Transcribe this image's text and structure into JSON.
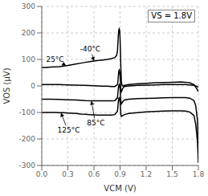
{
  "chart_data": {
    "type": "line",
    "x_label": "VCM (V)",
    "y_label": "VOS (μV)",
    "xlim": [
      0.0,
      1.8
    ],
    "ylim": [
      -300,
      300
    ],
    "xticks": [
      {
        "value": 0,
        "label": "0.0"
      },
      0.3,
      0.6,
      0.9,
      1.2,
      1.5,
      1.8
    ],
    "yticks": [
      -300,
      -200,
      -100,
      0,
      100,
      200,
      300
    ],
    "grid": true,
    "series": [
      {
        "color": "#000000",
        "x": [
          0.0,
          0.05,
          0.1,
          0.15,
          0.2,
          0.25,
          0.3,
          0.35,
          0.4,
          0.45,
          0.5,
          0.55,
          0.6,
          0.65,
          0.7,
          0.75,
          0.8,
          0.84,
          0.86,
          0.87,
          0.875,
          0.88,
          0.885,
          0.89,
          0.895,
          0.9,
          0.905,
          0.91,
          0.915,
          0.92,
          0.93,
          0.95,
          1.0,
          1.1,
          1.2,
          1.3,
          1.4,
          1.5,
          1.6,
          1.65,
          1.7,
          1.75,
          1.77,
          1.79,
          1.8
        ],
        "values": [
          70,
          70,
          71,
          72,
          73,
          75,
          77,
          80,
          83,
          86,
          89,
          92,
          94,
          96,
          98,
          100,
          103,
          107,
          115,
          130,
          160,
          190,
          210,
          215,
          210,
          180,
          120,
          60,
          20,
          5,
          0,
          2,
          5,
          8,
          10,
          12,
          13,
          14,
          15,
          14,
          12,
          5,
          -5,
          -15,
          -22
        ]
      },
      {
        "color": "#000000",
        "x": [
          0.0,
          0.1,
          0.2,
          0.3,
          0.4,
          0.5,
          0.6,
          0.65,
          0.7,
          0.75,
          0.8,
          0.84,
          0.87,
          0.875,
          0.88,
          0.885,
          0.89,
          0.895,
          0.9,
          0.905,
          0.91,
          0.915,
          0.92,
          0.93,
          0.94,
          0.95,
          1.0,
          1.1,
          1.2,
          1.3,
          1.4,
          1.5,
          1.6,
          1.65,
          1.7,
          1.75,
          1.78,
          1.8
        ],
        "values": [
          5,
          5,
          5,
          4,
          3,
          2,
          1,
          0,
          -1,
          -1,
          -2,
          -2,
          5,
          15,
          35,
          55,
          60,
          55,
          40,
          10,
          -15,
          -22,
          -18,
          -10,
          -5,
          -2,
          0,
          2,
          3,
          4,
          5,
          5,
          5,
          5,
          4,
          2,
          -1,
          -5
        ]
      },
      {
        "color": "#000000",
        "x": [
          0.0,
          0.1,
          0.2,
          0.3,
          0.4,
          0.5,
          0.6,
          0.65,
          0.7,
          0.75,
          0.8,
          0.84,
          0.87,
          0.875,
          0.88,
          0.885,
          0.89,
          0.895,
          0.9,
          0.905,
          0.91,
          0.915,
          0.92,
          0.93,
          0.94,
          0.95,
          1.0,
          1.1,
          1.2,
          1.3,
          1.4,
          1.5,
          1.55,
          1.6,
          1.65,
          1.7,
          1.75,
          1.77,
          1.79,
          1.8
        ],
        "values": [
          -50,
          -50,
          -51,
          -52,
          -53,
          -55,
          -56,
          -56,
          -56,
          -56,
          -56,
          -55,
          -45,
          -28,
          -10,
          0,
          5,
          2,
          -10,
          -35,
          -60,
          -68,
          -65,
          -60,
          -56,
          -53,
          -50,
          -48,
          -47,
          -46,
          -45,
          -44,
          -44,
          -44,
          -44,
          -46,
          -55,
          -75,
          -130,
          -240
        ]
      },
      {
        "color": "#000000",
        "x": [
          0.0,
          0.05,
          0.1,
          0.15,
          0.2,
          0.25,
          0.3,
          0.35,
          0.4,
          0.45,
          0.5,
          0.55,
          0.6,
          0.65,
          0.7,
          0.75,
          0.8,
          0.84,
          0.87,
          0.875,
          0.88,
          0.885,
          0.89,
          0.895,
          0.9,
          0.905,
          0.91,
          0.915,
          0.92,
          0.93,
          0.94,
          0.95,
          1.0,
          1.1,
          1.2,
          1.3,
          1.4,
          1.5,
          1.55,
          1.6,
          1.65,
          1.7,
          1.75,
          1.77,
          1.79,
          1.8
        ],
        "values": [
          -100,
          -100,
          -100,
          -100,
          -101,
          -101,
          -102,
          -103,
          -104,
          -106,
          -107,
          -108,
          -109,
          -110,
          -110,
          -110,
          -110,
          -108,
          -95,
          -80,
          -60,
          -48,
          -45,
          -48,
          -60,
          -85,
          -108,
          -115,
          -114,
          -112,
          -110,
          -108,
          -104,
          -101,
          -98,
          -96,
          -95,
          -94,
          -94,
          -94,
          -95,
          -98,
          -112,
          -145,
          -210,
          -290
        ]
      }
    ],
    "annotations": [
      {
        "text": "VS = 1.8V"
      },
      {
        "text": "-40°C",
        "x": 0.6,
        "y": 94,
        "text_x": 0.44,
        "text_y": 138
      },
      {
        "text": "25°C",
        "x": 0.28,
        "y": 77,
        "text_x": 0.05,
        "text_y": 100
      },
      {
        "text": "85°C",
        "x": 0.57,
        "y": -56,
        "text_x": 0.52,
        "text_y": -140
      },
      {
        "text": "125°C",
        "x": 0.22,
        "y": -101,
        "text_x": 0.18,
        "text_y": -168
      }
    ]
  }
}
